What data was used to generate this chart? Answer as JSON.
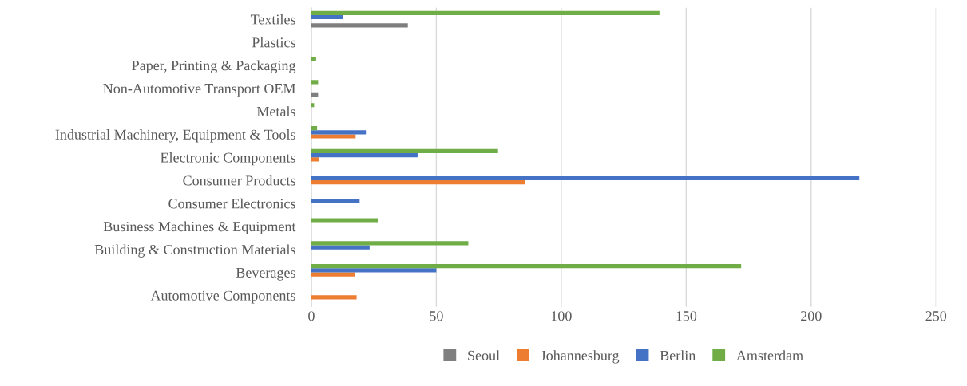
{
  "chart_data": {
    "type": "bar",
    "orientation": "horizontal",
    "categories": [
      "Textiles",
      "Plastics",
      "Paper, Printing & Packaging",
      "Non-Automotive Transport OEM",
      "Metals",
      "Industrial Machinery, Equipment & Tools",
      "Electronic Components",
      "Consumer Products",
      "Consumer Electronics",
      "Business Machines & Equipment",
      "Building & Construction Materials",
      "Beverages",
      "Automotive Components"
    ],
    "series": [
      {
        "name": "Seoul",
        "color": "#7f7f7f",
        "values": [
          38.6,
          null,
          null,
          2.7,
          null,
          null,
          null,
          null,
          null,
          null,
          null,
          null,
          null
        ]
      },
      {
        "name": "Johannesburg",
        "color": "#ed7d31",
        "values": [
          null,
          null,
          null,
          null,
          null,
          17.7,
          3.1,
          85.5,
          null,
          null,
          null,
          17.3,
          18.1
        ]
      },
      {
        "name": "Berlin",
        "color": "#4472c4",
        "values": [
          12.6,
          null,
          null,
          null,
          null,
          21.8,
          42.5,
          219.3,
          19.3,
          null,
          23.3,
          50.0,
          null
        ]
      },
      {
        "name": "Amsterdam",
        "color": "#70ad47",
        "values": [
          139.3,
          null,
          1.9,
          2.7,
          1.1,
          2.3,
          74.7,
          null,
          null,
          26.6,
          62.8,
          172.0,
          null
        ]
      }
    ],
    "xlim": [
      0,
      250
    ],
    "xticks": [
      0,
      50,
      100,
      150,
      200,
      250
    ],
    "grid": "x",
    "legend": "bottom"
  }
}
